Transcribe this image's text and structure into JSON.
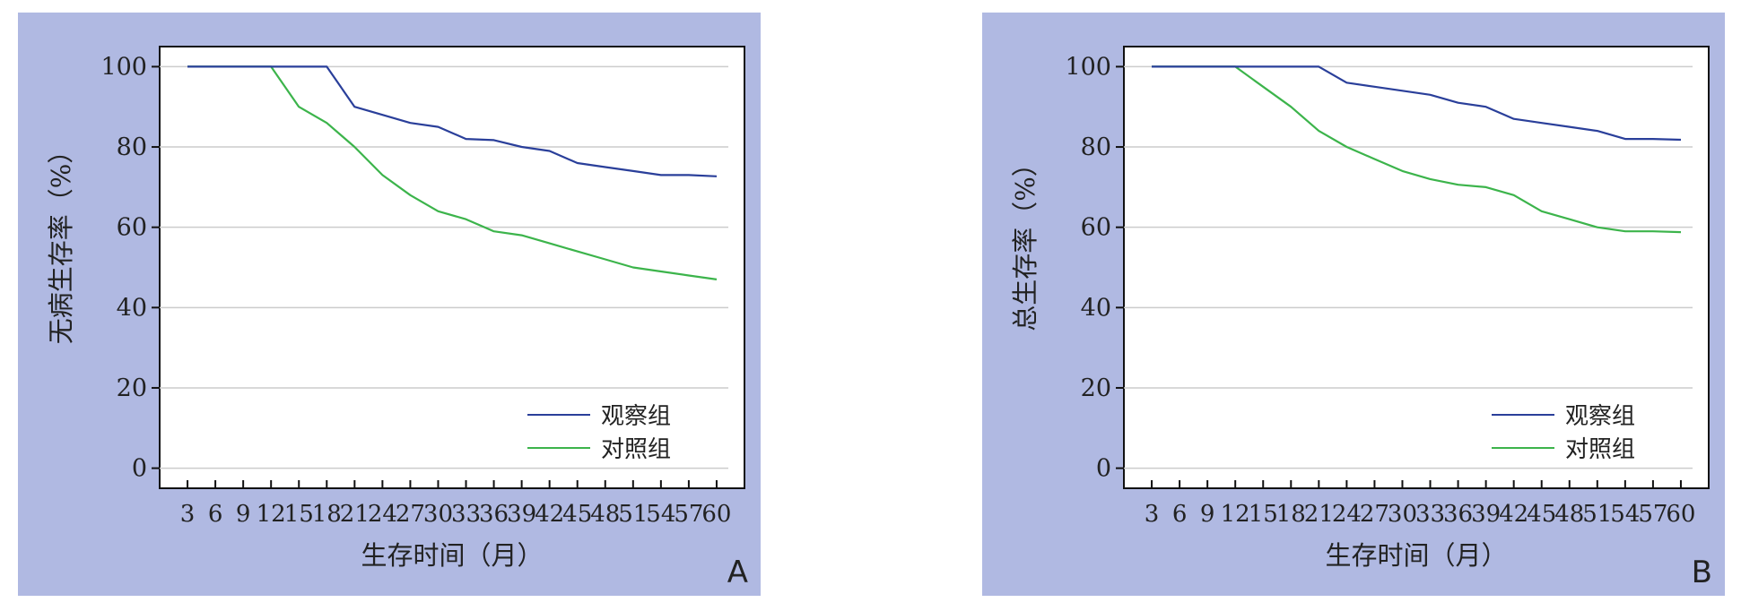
{
  "colors": {
    "panel_bg": "#b0b9e2",
    "plot_bg": "#ffffff",
    "grid": "#cccccc",
    "observe": "#2a3f9a",
    "control": "#3cb44b"
  },
  "charts": [
    {
      "id": "a",
      "panel_label": "A",
      "chart_data": {
        "type": "line",
        "xlabel": "生存时间（月）",
        "ylabel": "无病生存率（%）",
        "x_ticks": [
          "3",
          "6",
          "9",
          "12",
          "15",
          "18",
          "21",
          "24",
          "27",
          "30",
          "33",
          "36",
          "39",
          "42",
          "45",
          "48",
          "51",
          "54",
          "57",
          "60"
        ],
        "y_ticks": [
          "0",
          "20",
          "40",
          "60",
          "80",
          "100"
        ],
        "xlim": [
          0,
          63
        ],
        "ylim": [
          -5,
          105
        ],
        "grid": true,
        "legend_position": "bottom-right",
        "series": [
          {
            "name": "观察组",
            "color": "#2a3f9a",
            "x": [
              3,
              12,
              18,
              21,
              24,
              27,
              30,
              33,
              36,
              39,
              42,
              45,
              48,
              51,
              54,
              57,
              60
            ],
            "y": [
              100,
              100,
              100,
              90,
              88,
              86,
              85,
              82,
              81.7,
              80,
              79,
              76,
              75,
              74,
              73,
              73,
              72.7
            ]
          },
          {
            "name": "对照组",
            "color": "#3cb44b",
            "x": [
              3,
              12,
              15,
              18,
              21,
              24,
              27,
              30,
              33,
              36,
              39,
              42,
              45,
              48,
              51,
              54,
              57,
              60
            ],
            "y": [
              100,
              100,
              90,
              86,
              80,
              73,
              68,
              64,
              62,
              59,
              58,
              56,
              54,
              52,
              50,
              49,
              48,
              47
            ]
          }
        ]
      }
    },
    {
      "id": "b",
      "panel_label": "B",
      "chart_data": {
        "type": "line",
        "xlabel": "生存时间（月）",
        "ylabel": "总生存率（%）",
        "x_ticks": [
          "3",
          "6",
          "9",
          "12",
          "15",
          "18",
          "21",
          "24",
          "27",
          "30",
          "33",
          "36",
          "39",
          "42",
          "45",
          "48",
          "51",
          "54",
          "57",
          "60"
        ],
        "y_ticks": [
          "0",
          "20",
          "40",
          "60",
          "80",
          "100"
        ],
        "xlim": [
          0,
          63
        ],
        "ylim": [
          -5,
          105
        ],
        "grid": true,
        "legend_position": "bottom-right",
        "series": [
          {
            "name": "观察组",
            "color": "#2a3f9a",
            "x": [
              3,
              12,
              21,
              24,
              27,
              30,
              33,
              36,
              39,
              42,
              45,
              48,
              51,
              54,
              57,
              60
            ],
            "y": [
              100,
              100,
              100,
              96,
              95,
              94,
              93,
              91,
              90,
              87,
              86,
              85,
              84,
              82,
              82,
              81.8
            ]
          },
          {
            "name": "对照组",
            "color": "#3cb44b",
            "x": [
              3,
              12,
              15,
              18,
              21,
              24,
              27,
              30,
              33,
              36,
              39,
              42,
              45,
              48,
              51,
              54,
              57,
              60
            ],
            "y": [
              100,
              100,
              95,
              90,
              84,
              80,
              77,
              74,
              72,
              70.6,
              70,
              68,
              64,
              62,
              60,
              59,
              59,
              58.8
            ]
          }
        ]
      }
    }
  ]
}
